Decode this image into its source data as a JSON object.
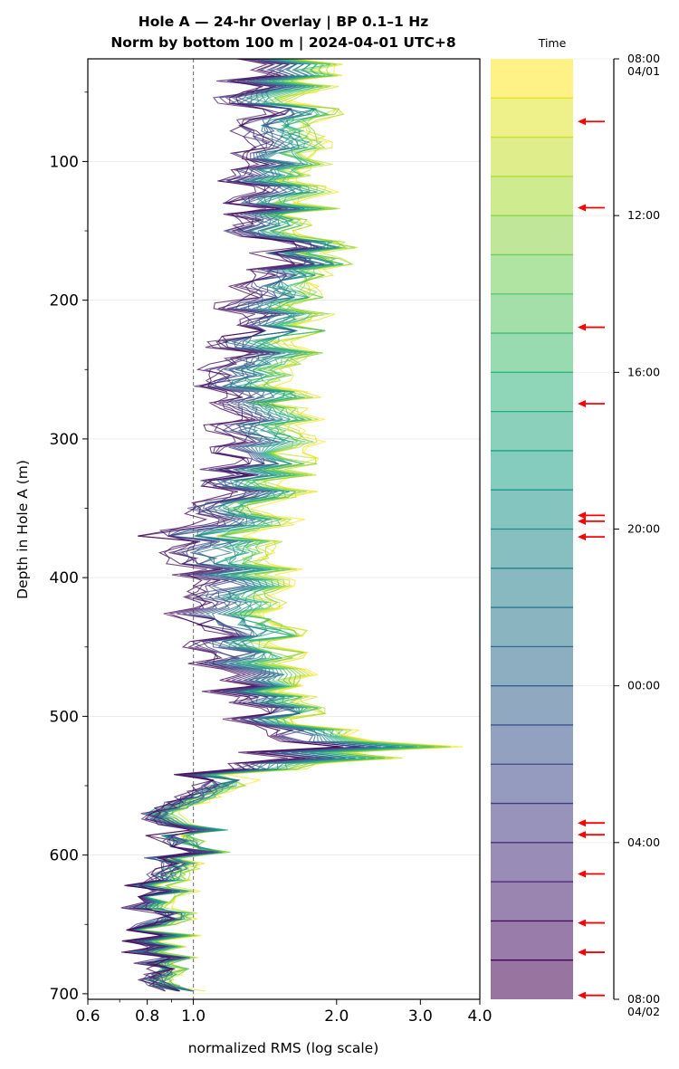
{
  "chart_data": {
    "type": "line",
    "title": "Hole A — 24-hr Overlay  |  BP 0.1–1 Hz",
    "subtitle": "Norm by bottom 100 m  |  2024-04-01 UTC+8",
    "xlabel": "normalized RMS  (log scale)",
    "ylabel": "Depth in Hole A (m)",
    "xscale": "log",
    "xlim": [
      0.6,
      4.0
    ],
    "ylim": [
      704,
      26
    ],
    "y_inverted": true,
    "x_ticks": [
      "0.6",
      "0.8",
      "1.0",
      "2.0",
      "3.0",
      "4.0"
    ],
    "x_tick_values": [
      0.6,
      0.8,
      1.0,
      2.0,
      3.0,
      4.0
    ],
    "y_ticks": [
      "100",
      "200",
      "300",
      "400",
      "500",
      "600",
      "700"
    ],
    "y_tick_values": [
      100,
      200,
      300,
      400,
      500,
      600,
      700
    ],
    "reference_line": {
      "x": 1.0,
      "style": "dashed",
      "color": "#808080"
    },
    "grid": "horizontal, light",
    "series_count": 24,
    "colormap": "viridis",
    "series_profile": {
      "depth": [
        26,
        100,
        150,
        160,
        200,
        250,
        300,
        350,
        370,
        400,
        450,
        500,
        530,
        540,
        570,
        580,
        600,
        620,
        650,
        680,
        700
      ],
      "late_hours_rms": [
        1.8,
        1.75,
        1.75,
        2.0,
        1.75,
        1.65,
        1.65,
        1.5,
        1.45,
        1.5,
        1.6,
        1.65,
        2.45,
        1.2,
        1.0,
        1.1,
        1.0,
        0.95,
        0.9,
        0.9,
        0.95
      ],
      "early_hours_rms": [
        1.3,
        1.25,
        1.3,
        1.6,
        1.25,
        1.15,
        1.15,
        1.1,
        0.9,
        1.0,
        1.05,
        1.3,
        1.45,
        1.0,
        0.92,
        0.95,
        0.9,
        0.82,
        0.8,
        0.82,
        0.88
      ]
    }
  },
  "time_colorbar": {
    "label": "Time",
    "hours": 24,
    "tick_labels": [
      "08:00\n04/01",
      "12:00",
      "16:00",
      "20:00",
      "00:00",
      "04:00",
      "08:00\n04/02"
    ],
    "tick_hours": [
      0,
      4,
      8,
      12,
      16,
      20,
      24
    ],
    "color_top": "#fde725",
    "color_bottom": "#440154",
    "arrow_color": "#ff0000",
    "event_hours": [
      1.6,
      3.8,
      6.85,
      8.8,
      11.65,
      11.8,
      12.2,
      19.5,
      19.8,
      20.8,
      22.05,
      22.8,
      23.9
    ]
  }
}
